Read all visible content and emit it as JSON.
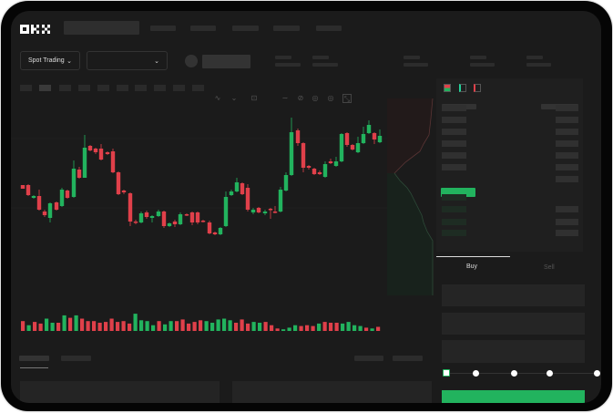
{
  "header": {
    "logo": "OKX"
  },
  "controls": {
    "market_type": "Spot Trading",
    "pair_select": ""
  },
  "trade": {
    "tabs": [
      "Buy",
      "Sell"
    ],
    "active_tab": "Buy",
    "leverage_slider_value": 0
  },
  "colors": {
    "up": "#22b35e",
    "down": "#e0404a",
    "background": "#1b1b1b",
    "bezel": "#050505"
  },
  "icons": [
    "okx-logo",
    "chevron-down-icon",
    "indicator-icon",
    "drawing-icon",
    "camera-icon",
    "settings-icon",
    "fullscreen-icon",
    "orderbook-both-icon",
    "orderbook-bids-icon",
    "orderbook-asks-icon"
  ]
}
